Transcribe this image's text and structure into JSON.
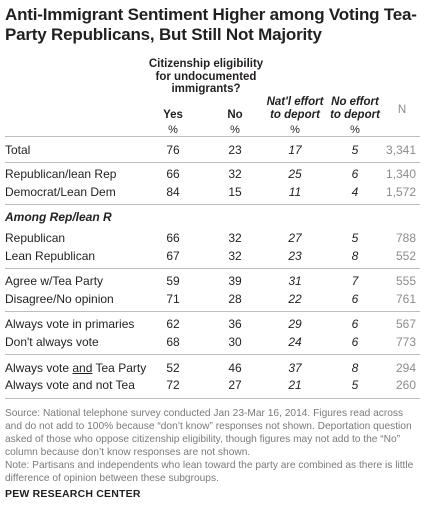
{
  "title": "Anti-Immigrant Sentiment Higher among Voting Tea-Party Republicans, But Still Not Majority",
  "headers": {
    "citizenship": "Citizenship eligibility for undocumented immigrants?",
    "yes": "Yes",
    "no": "No",
    "natl_effort": "Nat'l effort to deport",
    "no_effort": "No effort to deport",
    "n": "N",
    "pct": "%"
  },
  "section_label": "Among Rep/lean R",
  "rows": [
    {
      "label": "Total",
      "yes": "76",
      "no": "23",
      "natl": "17",
      "noeff": "5",
      "n": "3,341"
    },
    {
      "label": "Republican/lean Rep",
      "yes": "66",
      "no": "32",
      "natl": "25",
      "noeff": "6",
      "n": "1,340"
    },
    {
      "label": "Democrat/Lean Dem",
      "yes": "84",
      "no": "15",
      "natl": "11",
      "noeff": "4",
      "n": "1,572"
    },
    {
      "label": "Republican",
      "yes": "66",
      "no": "32",
      "natl": "27",
      "noeff": "5",
      "n": "788"
    },
    {
      "label": "Lean Republican",
      "yes": "67",
      "no": "32",
      "natl": "23",
      "noeff": "8",
      "n": "552"
    },
    {
      "label": "Agree w/Tea Party",
      "yes": "59",
      "no": "39",
      "natl": "31",
      "noeff": "7",
      "n": "555"
    },
    {
      "label": "Disagree/No opinion",
      "yes": "71",
      "no": "28",
      "natl": "22",
      "noeff": "6",
      "n": "761"
    },
    {
      "label": "Always vote in primaries",
      "yes": "62",
      "no": "36",
      "natl": "29",
      "noeff": "6",
      "n": "567"
    },
    {
      "label": "Don't always vote",
      "yes": "68",
      "no": "30",
      "natl": "24",
      "noeff": "6",
      "n": "773"
    },
    {
      "label_pre": "Always vote ",
      "label_u": "and",
      "label_post": " Tea Party",
      "yes": "52",
      "no": "46",
      "natl": "37",
      "noeff": "8",
      "n": "294"
    },
    {
      "label": "Always vote and not Tea",
      "yes": "72",
      "no": "27",
      "natl": "21",
      "noeff": "5",
      "n": "260"
    }
  ],
  "notes": {
    "source_text": "Source: National telephone survey conducted Jan 23-Mar 16, 2014. Figures read across and do not add to 100% because “don’t know” responses not shown. Deportation question asked of those who oppose citizenship eligibility, though figures may not add to the “No” column because don’t know responses are not shown.",
    "note_text": "Note: Partisans and independents who lean toward the party are combined as there is little difference of opinion between these subgroups.",
    "org": "PEW RESEARCH CENTER"
  }
}
